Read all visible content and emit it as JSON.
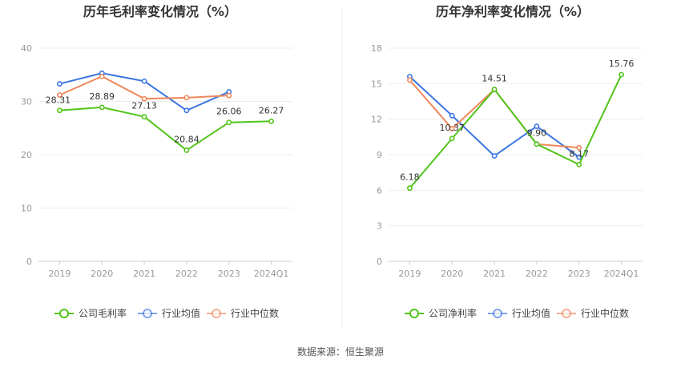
{
  "source_label": "数据来源：恒生聚源",
  "legend": [
    {
      "key": "company",
      "color": "#52c41a"
    },
    {
      "key": "avg",
      "color": "#3c76e0",
      "label": "行业均值"
    },
    {
      "key": "median",
      "color": "#f0875a",
      "label": "行业中位数"
    }
  ],
  "chart_data": [
    {
      "type": "line",
      "title": "历年毛利率变化情况（%）",
      "categories": [
        "2019",
        "2020",
        "2021",
        "2022",
        "2023",
        "2024Q1"
      ],
      "ylim": [
        0,
        40
      ],
      "yticks": [
        0,
        10,
        20,
        30,
        40
      ],
      "grid": true,
      "legend_position": "bottom",
      "series": [
        {
          "key": "company",
          "name": "公司毛利率",
          "color": "#52c41a",
          "values": [
            28.31,
            28.89,
            27.13,
            20.84,
            26.06,
            26.27
          ],
          "labeled": true
        },
        {
          "key": "avg",
          "name": "行业均值",
          "color": "#3c76e0",
          "values": [
            33.3,
            35.3,
            33.8,
            28.3,
            31.8,
            null
          ],
          "labeled": false
        },
        {
          "key": "median",
          "name": "行业中位数",
          "color": "#f0875a",
          "values": [
            31.2,
            34.7,
            30.5,
            30.7,
            31.1,
            null
          ],
          "labeled": false
        }
      ]
    },
    {
      "type": "line",
      "title": "历年净利率变化情况（%）",
      "categories": [
        "2019",
        "2020",
        "2021",
        "2022",
        "2023",
        "2024Q1"
      ],
      "ylim": [
        0,
        18
      ],
      "yticks": [
        0,
        3,
        6,
        9,
        12,
        15,
        18
      ],
      "grid": true,
      "legend_position": "bottom",
      "series": [
        {
          "key": "company",
          "name": "公司净利率",
          "color": "#52c41a",
          "values": [
            6.18,
            10.37,
            14.51,
            9.9,
            8.17,
            15.76
          ],
          "labeled": true
        },
        {
          "key": "avg",
          "name": "行业均值",
          "color": "#3c76e0",
          "values": [
            15.6,
            12.3,
            8.9,
            11.4,
            8.8,
            null
          ],
          "labeled": false
        },
        {
          "key": "median",
          "name": "行业中位数",
          "color": "#f0875a",
          "values": [
            15.3,
            11.2,
            14.5,
            9.9,
            9.6,
            null
          ],
          "labeled": false
        }
      ]
    }
  ]
}
